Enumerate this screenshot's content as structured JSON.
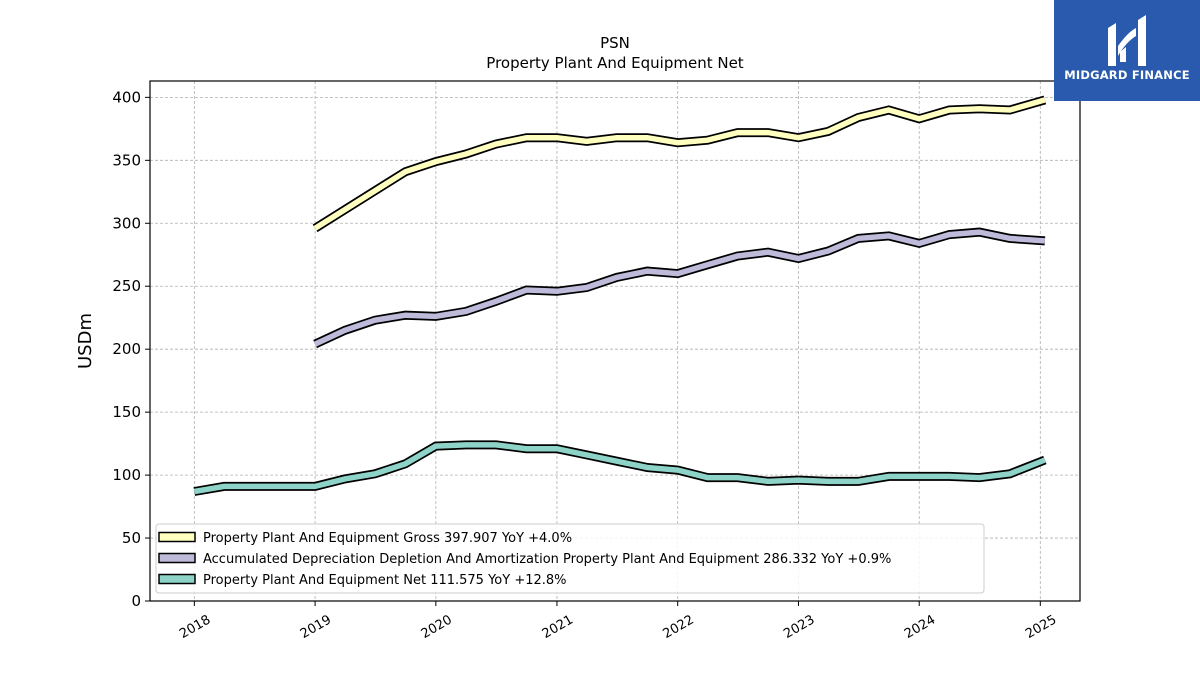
{
  "logo": {
    "brand": "MIDGARD FINANCE",
    "color": "#2a5aad"
  },
  "chart_data": {
    "type": "line",
    "title": "PSN",
    "subtitle": "Property Plant And Equipment Net",
    "ylabel": "USDm",
    "xlabel": "",
    "ylim": [
      0,
      413
    ],
    "xlim": [
      "2017-08-20",
      "2025-05-01"
    ],
    "yticks": [
      0,
      50,
      100,
      150,
      200,
      250,
      300,
      350,
      400
    ],
    "xticks": [
      {
        "label": "2018",
        "date": "2018-01-01"
      },
      {
        "label": "2019",
        "date": "2019-01-01"
      },
      {
        "label": "2020",
        "date": "2020-01-01"
      },
      {
        "label": "2021",
        "date": "2021-01-01"
      },
      {
        "label": "2022",
        "date": "2022-01-01"
      },
      {
        "label": "2023",
        "date": "2023-01-01"
      },
      {
        "label": "2024",
        "date": "2024-01-01"
      },
      {
        "label": "2025",
        "date": "2025-01-01"
      }
    ],
    "grid": true,
    "legend_position": "lower-left",
    "series": [
      {
        "name": "Property Plant And Equipment Gross",
        "legend": "Property Plant And Equipment Gross  397.907 YoY +4.0%",
        "color": "#ffffc0",
        "points": [
          [
            "2019-01-01",
            296
          ],
          [
            "2019-10-01",
            341
          ],
          [
            "2020-01-01",
            349
          ],
          [
            "2020-04-01",
            355
          ],
          [
            "2020-07-01",
            363
          ],
          [
            "2020-10-01",
            368
          ],
          [
            "2021-01-01",
            368
          ],
          [
            "2021-04-01",
            365
          ],
          [
            "2021-07-01",
            368
          ],
          [
            "2021-10-01",
            368
          ],
          [
            "2022-01-01",
            364
          ],
          [
            "2022-04-01",
            366
          ],
          [
            "2022-07-01",
            372
          ],
          [
            "2022-10-01",
            372
          ],
          [
            "2023-01-01",
            368
          ],
          [
            "2023-04-01",
            373
          ],
          [
            "2023-07-01",
            384
          ],
          [
            "2023-10-01",
            390
          ],
          [
            "2024-01-01",
            383
          ],
          [
            "2024-04-01",
            390
          ],
          [
            "2024-07-01",
            391
          ],
          [
            "2024-10-01",
            390
          ],
          [
            "2025-01-15",
            398
          ]
        ]
      },
      {
        "name": "Accumulated Depreciation Depletion And Amortization Property Plant And Equipment",
        "legend": "Accumulated Depreciation Depletion And Amortization Property Plant And Equipment  286.332 YoY +0.9%",
        "color": "#bebada",
        "points": [
          [
            "2019-01-01",
            204
          ],
          [
            "2019-04-01",
            215
          ],
          [
            "2019-07-01",
            223
          ],
          [
            "2019-10-01",
            227
          ],
          [
            "2020-01-01",
            226
          ],
          [
            "2020-04-01",
            230
          ],
          [
            "2020-07-01",
            238
          ],
          [
            "2020-10-01",
            247
          ],
          [
            "2021-01-01",
            246
          ],
          [
            "2021-04-01",
            249
          ],
          [
            "2021-07-01",
            257
          ],
          [
            "2021-10-01",
            262
          ],
          [
            "2022-01-01",
            260
          ],
          [
            "2022-04-01",
            267
          ],
          [
            "2022-07-01",
            274
          ],
          [
            "2022-10-01",
            277
          ],
          [
            "2023-01-01",
            272
          ],
          [
            "2023-04-01",
            278
          ],
          [
            "2023-07-01",
            288
          ],
          [
            "2023-10-01",
            290
          ],
          [
            "2024-01-01",
            284
          ],
          [
            "2024-04-01",
            291
          ],
          [
            "2024-07-01",
            293
          ],
          [
            "2024-10-01",
            288
          ],
          [
            "2025-01-15",
            286
          ]
        ]
      },
      {
        "name": "Property Plant And Equipment Net",
        "legend": "Property Plant And Equipment Net  111.575 YoY +12.8%",
        "color": "#8dd3c7",
        "points": [
          [
            "2018-01-01",
            87
          ],
          [
            "2018-04-01",
            91
          ],
          [
            "2018-07-01",
            91
          ],
          [
            "2018-10-01",
            91
          ],
          [
            "2019-01-01",
            91
          ],
          [
            "2019-04-01",
            97
          ],
          [
            "2019-07-01",
            101
          ],
          [
            "2019-10-01",
            109
          ],
          [
            "2020-01-01",
            123
          ],
          [
            "2020-04-01",
            124
          ],
          [
            "2020-07-01",
            124
          ],
          [
            "2020-10-01",
            121
          ],
          [
            "2021-01-01",
            121
          ],
          [
            "2021-04-01",
            116
          ],
          [
            "2021-07-01",
            111
          ],
          [
            "2021-10-01",
            106
          ],
          [
            "2022-01-01",
            104
          ],
          [
            "2022-04-01",
            98
          ],
          [
            "2022-07-01",
            98
          ],
          [
            "2022-10-01",
            95
          ],
          [
            "2023-01-01",
            96
          ],
          [
            "2023-04-01",
            95
          ],
          [
            "2023-07-01",
            95
          ],
          [
            "2023-10-01",
            99
          ],
          [
            "2024-01-01",
            99
          ],
          [
            "2024-04-01",
            99
          ],
          [
            "2024-07-01",
            98
          ],
          [
            "2024-10-01",
            101
          ],
          [
            "2025-01-15",
            112
          ]
        ]
      }
    ]
  }
}
